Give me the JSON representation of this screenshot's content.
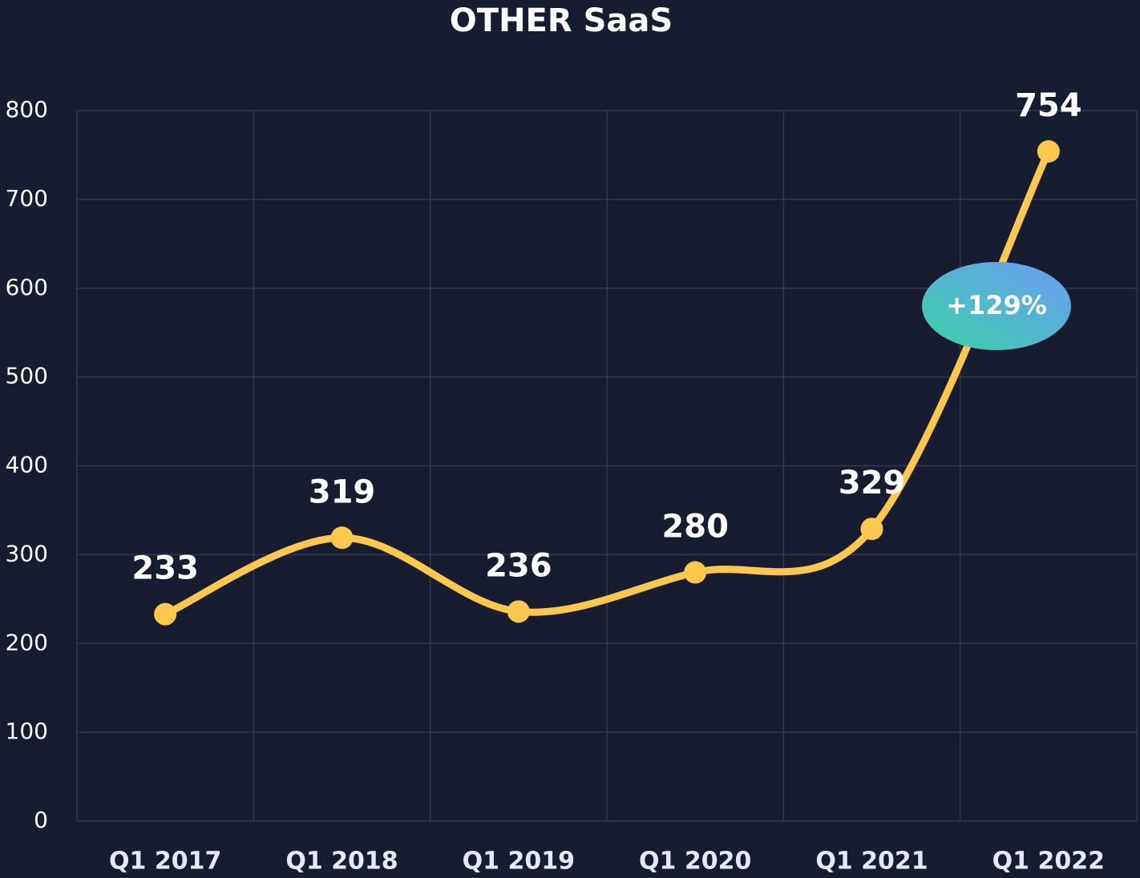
{
  "chart_data": {
    "type": "line",
    "title": "OTHER SaaS",
    "categories": [
      "Q1 2017",
      "Q1 2018",
      "Q1 2019",
      "Q1 2020",
      "Q1 2021",
      "Q1 2022"
    ],
    "series": [
      {
        "name": "OTHER SaaS",
        "color": "#fec84f",
        "values": [
          233,
          319,
          236,
          280,
          329,
          754
        ]
      }
    ],
    "ylim": [
      0,
      800
    ],
    "yticks": [
      0,
      100,
      200,
      300,
      400,
      500,
      600,
      700,
      800
    ],
    "grid": true,
    "annotation": "+129%"
  }
}
